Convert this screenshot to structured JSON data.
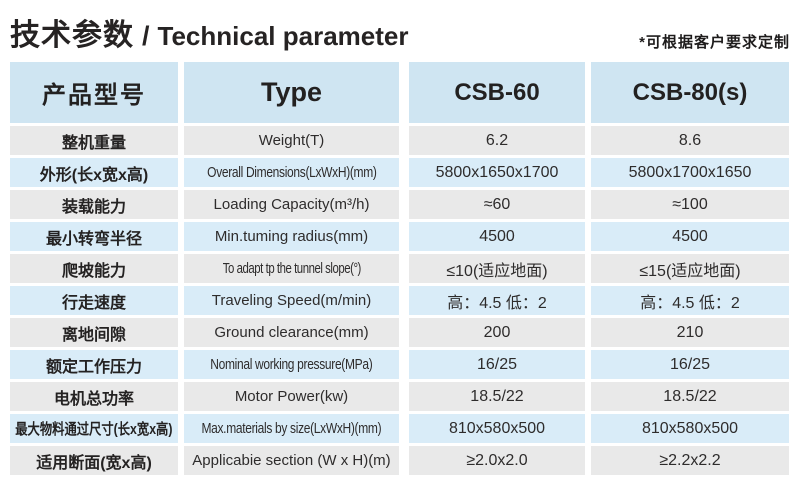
{
  "page": {
    "title_cn": "技术参数",
    "title_sep": "/",
    "title_en": "Technical parameter",
    "note": "*可根据客户要求定制"
  },
  "colors": {
    "header_bg": "#cfe5f2",
    "row_blue_bg": "#d9ecf8",
    "row_gray_bg": "#e9e9e9",
    "text_dark": "#262323"
  },
  "chart_data": {
    "type": "table",
    "title": "技术参数 / Technical parameter",
    "annotation": "*可根据客户要求定制",
    "columns": [
      "产品型号",
      "Type",
      "CSB-60",
      "CSB-80(s)"
    ],
    "rows": [
      [
        "整机重量",
        "Weight(T)",
        "6.2",
        "8.6"
      ],
      [
        "外形(长x宽x高)",
        "Overall Dimensions(LxWxH)(mm)",
        "5800x1650x1700",
        "5800x1700x1650"
      ],
      [
        "装载能力",
        "Loading Capacity(m³/h)",
        "≈60",
        "≈100"
      ],
      [
        "最小转弯半径",
        "Min.tuming radius(mm)",
        "4500",
        "4500"
      ],
      [
        "爬坡能力",
        "To adapt tp the tunnel slope(°)",
        "≤10(适应地面)",
        "≤15(适应地面)"
      ],
      [
        "行走速度",
        "Traveling Speed(m/min)",
        "高：4.5 低：2",
        "高：4.5 低：2"
      ],
      [
        "离地间隙",
        "Ground clearance(mm)",
        "200",
        "210"
      ],
      [
        "额定工作压力",
        "Nominal working pressure(MPa)",
        "16/25",
        "16/25"
      ],
      [
        "电机总功率",
        "Motor Power(kw)",
        "18.5/22",
        "18.5/22"
      ],
      [
        "最大物料通过尺寸(长x宽x高)",
        "Max.materials by size(LxWxH)(mm)",
        "810x580x500",
        "810x580x500"
      ],
      [
        "适用断面(宽x高)",
        "Applicabie section (W x H)(m)",
        "≥2.0x2.0",
        "≥2.2x2.2"
      ]
    ]
  }
}
